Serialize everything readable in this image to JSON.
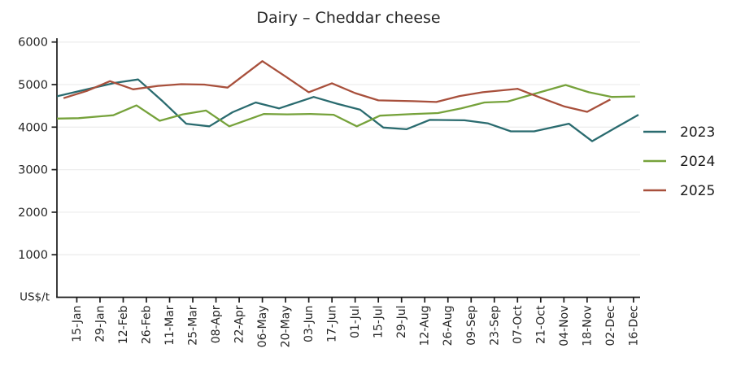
{
  "window": {
    "title": "Dairy – Cheddar cheese"
  },
  "chart_data": {
    "type": "line",
    "title": "Dairy – Cheddar cheese",
    "y_unit_label": "US$/t",
    "ylim": [
      0,
      6000
    ],
    "yticks": [
      1000,
      2000,
      3000,
      4000,
      5000,
      6000
    ],
    "xlim_doy": [
      3,
      354
    ],
    "grid": "horizontal-light",
    "legend_position": "right-middle",
    "x_tick_labels": [
      "15-Jan",
      "29-Jan",
      "12-Feb",
      "26-Feb",
      "11-Mar",
      "25-Mar",
      "08-Apr",
      "22-Apr",
      "06-May",
      "20-May",
      "03-Jun",
      "17-Jun",
      "01-Jul",
      "15-Jul",
      "29-Jul",
      "12-Aug",
      "26-Aug",
      "09-Sep",
      "23-Sep",
      "07-Oct",
      "21-Oct",
      "04-Nov",
      "18-Nov",
      "02-Dec",
      "16-Dec"
    ],
    "x_tick_doys": [
      15,
      29,
      43,
      57,
      71,
      85,
      99,
      113,
      127,
      141,
      155,
      169,
      183,
      197,
      211,
      225,
      239,
      253,
      267,
      281,
      295,
      309,
      323,
      337,
      351
    ],
    "point_fields": [
      "date",
      "doy",
      "usd_per_t"
    ],
    "series": [
      {
        "name": "2023",
        "color": "#2a6b6f",
        "points": [
          [
            "03-Jan",
            3,
            4725
          ],
          [
            "17-Jan",
            17,
            4850
          ],
          [
            "07-Feb",
            38,
            5040
          ],
          [
            "21-Feb",
            52,
            5120
          ],
          [
            "07-Mar",
            67,
            4600
          ],
          [
            "21-Mar",
            81,
            4080
          ],
          [
            "04-Apr",
            95,
            4020
          ],
          [
            "18-Apr",
            109,
            4350
          ],
          [
            "02-May",
            123,
            4580
          ],
          [
            "16-May",
            137,
            4440
          ],
          [
            "06-Jun",
            158,
            4710
          ],
          [
            "20-Jun",
            172,
            4550
          ],
          [
            "04-Jul",
            186,
            4410
          ],
          [
            "18-Jul",
            200,
            3990
          ],
          [
            "01-Aug",
            214,
            3950
          ],
          [
            "15-Aug",
            228,
            4170
          ],
          [
            "05-Sep",
            249,
            4160
          ],
          [
            "19-Sep",
            263,
            4090
          ],
          [
            "03-Oct",
            277,
            3900
          ],
          [
            "17-Oct",
            291,
            3900
          ],
          [
            "07-Nov",
            312,
            4080
          ],
          [
            "21-Nov",
            326,
            3670
          ],
          [
            "05-Dec",
            340,
            3980
          ],
          [
            "19-Dec",
            354,
            4290
          ]
        ]
      },
      {
        "name": "2024",
        "color": "#76a23b",
        "points": [
          [
            "02-Jan",
            3,
            4200
          ],
          [
            "16-Jan",
            16,
            4210
          ],
          [
            "06-Feb",
            37,
            4280
          ],
          [
            "20-Feb",
            51,
            4510
          ],
          [
            "05-Mar",
            65,
            4150
          ],
          [
            "19-Mar",
            79,
            4300
          ],
          [
            "02-Apr",
            93,
            4390
          ],
          [
            "16-Apr",
            107,
            4020
          ],
          [
            "07-May",
            128,
            4310
          ],
          [
            "21-May",
            142,
            4300
          ],
          [
            "04-Jun",
            156,
            4310
          ],
          [
            "18-Jun",
            170,
            4290
          ],
          [
            "02-Jul",
            184,
            4020
          ],
          [
            "16-Jul",
            198,
            4270
          ],
          [
            "06-Aug",
            219,
            4310
          ],
          [
            "20-Aug",
            233,
            4330
          ],
          [
            "03-Sep",
            247,
            4440
          ],
          [
            "17-Sep",
            261,
            4580
          ],
          [
            "01-Oct",
            275,
            4600
          ],
          [
            "15-Oct",
            289,
            4760
          ],
          [
            "05-Nov",
            310,
            4990
          ],
          [
            "19-Nov",
            324,
            4820
          ],
          [
            "03-Dec",
            338,
            4710
          ],
          [
            "17-Dec",
            352,
            4720
          ]
        ]
      },
      {
        "name": "2025",
        "color": "#a8503c",
        "points": [
          [
            "07-Jan",
            7,
            4680
          ],
          [
            "21-Jan",
            21,
            4850
          ],
          [
            "04-Feb",
            35,
            5080
          ],
          [
            "18-Feb",
            49,
            4890
          ],
          [
            "04-Mar",
            64,
            4970
          ],
          [
            "18-Mar",
            78,
            5010
          ],
          [
            "01-Apr",
            92,
            5000
          ],
          [
            "15-Apr",
            106,
            4930
          ],
          [
            "06-May",
            127,
            5550
          ],
          [
            "20-May",
            141,
            5190
          ],
          [
            "03-Jun",
            155,
            4820
          ],
          [
            "17-Jun",
            169,
            5030
          ],
          [
            "01-Jul",
            183,
            4800
          ],
          [
            "15-Jul",
            197,
            4630
          ],
          [
            "05-Aug",
            218,
            4610
          ],
          [
            "19-Aug",
            232,
            4590
          ],
          [
            "02-Sep",
            246,
            4730
          ],
          [
            "16-Sep",
            260,
            4820
          ],
          [
            "07-Oct",
            281,
            4900
          ],
          [
            "21-Oct",
            295,
            4690
          ],
          [
            "04-Nov",
            309,
            4490
          ],
          [
            "18-Nov",
            323,
            4360
          ],
          [
            "02-Dec",
            337,
            4650
          ]
        ]
      }
    ]
  }
}
